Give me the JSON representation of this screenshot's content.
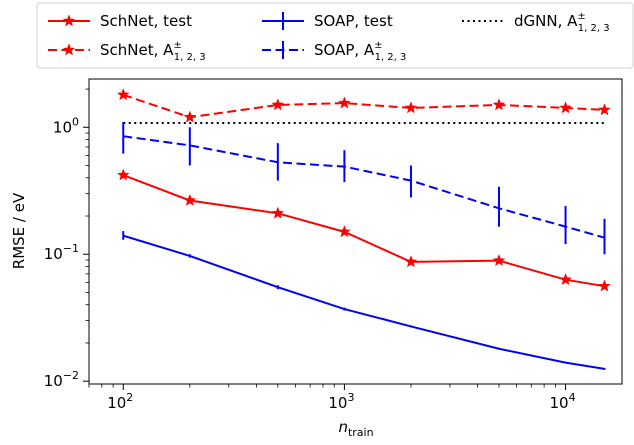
{
  "chart_data": {
    "type": "line",
    "xlabel": "n",
    "xlabel_sub": "train",
    "ylabel": "RMSE / eV",
    "xscale": "log",
    "yscale": "log",
    "xlim": [
      70,
      18000
    ],
    "ylim": [
      0.0095,
      2.4
    ],
    "x_ticks": [
      {
        "value": 100,
        "base": "10",
        "exp": "2"
      },
      {
        "value": 1000,
        "base": "10",
        "exp": "3"
      },
      {
        "value": 10000,
        "base": "10",
        "exp": "4"
      }
    ],
    "y_ticks": [
      {
        "value": 0.01,
        "base": "10",
        "exp": "−2"
      },
      {
        "value": 0.1,
        "base": "10",
        "exp": "−1"
      },
      {
        "value": 1,
        "base": "10",
        "exp": "0"
      }
    ],
    "grid": false,
    "legend_position": "top, outside plot, 3 columns",
    "series": [
      {
        "name": "SchNet, test",
        "color": "#ff0000",
        "dash": "solid",
        "marker": "star",
        "x": [
          100,
          200,
          500,
          1000,
          2000,
          5000,
          10000,
          15000
        ],
        "y": [
          0.42,
          0.265,
          0.21,
          0.15,
          0.087,
          0.089,
          0.063,
          0.056
        ]
      },
      {
        "name": "SchNet, A",
        "name_sup": "±",
        "name_sub": "1, 2, 3",
        "color": "#ff0000",
        "dash": "dashed",
        "marker": "star",
        "x": [
          100,
          200,
          500,
          1000,
          2000,
          5000,
          10000,
          15000
        ],
        "y": [
          1.8,
          1.2,
          1.5,
          1.55,
          1.42,
          1.5,
          1.42,
          1.37
        ]
      },
      {
        "name": "SOAP, test",
        "color": "#0000ff",
        "dash": "solid",
        "marker": "errorbar",
        "x": [
          100,
          200,
          500,
          1000,
          2000,
          5000,
          10000,
          15000
        ],
        "y": [
          0.14,
          0.097,
          0.055,
          0.037,
          0.027,
          0.018,
          0.014,
          0.0125
        ],
        "err_low": [
          0.13,
          0.094,
          0.053,
          0.036,
          0.0265,
          0.0177,
          0.0138,
          0.0123
        ],
        "err_high": [
          0.152,
          0.1,
          0.057,
          0.038,
          0.0275,
          0.0183,
          0.0142,
          0.0127
        ]
      },
      {
        "name": "SOAP, A",
        "name_sup": "±",
        "name_sub": "1, 2, 3",
        "color": "#0000ff",
        "dash": "dashed",
        "marker": "errorbar",
        "x": [
          100,
          200,
          500,
          1000,
          2000,
          5000,
          10000,
          15000
        ],
        "y": [
          0.85,
          0.72,
          0.53,
          0.49,
          0.38,
          0.23,
          0.165,
          0.135
        ],
        "err_low": [
          0.62,
          0.5,
          0.38,
          0.37,
          0.28,
          0.165,
          0.12,
          0.1
        ],
        "err_high": [
          1.1,
          1.0,
          0.75,
          0.66,
          0.5,
          0.34,
          0.24,
          0.19
        ]
      },
      {
        "name": "dGNN, A",
        "name_sup": "±",
        "name_sub": "1, 2, 3",
        "color": "#000000",
        "dash": "dotted",
        "marker": "none",
        "x": [
          100,
          15000
        ],
        "y": [
          1.08,
          1.08
        ]
      }
    ]
  }
}
